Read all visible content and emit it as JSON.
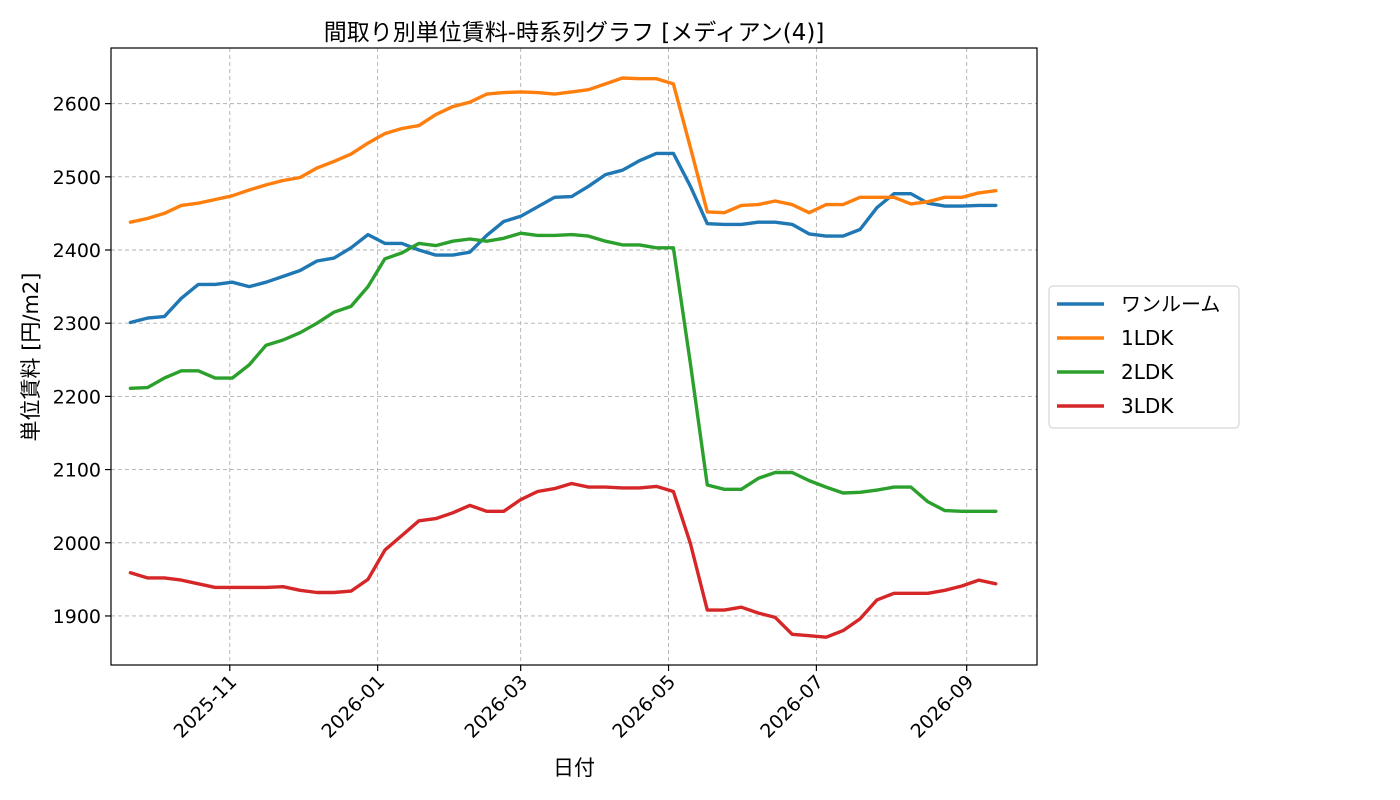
{
  "chart_data": {
    "type": "line",
    "title": "間取り別単位賃料-時系列グラフ [メディアン(4)]",
    "xlabel": "日付",
    "ylabel": "単位賃料 [円/m2]",
    "grid": true,
    "legend_position": "center-right",
    "ylim": [
      1833,
      2676
    ],
    "xlim": [
      "2025-09-13",
      "2026-09-30"
    ],
    "y_ticks": [
      1900,
      2000,
      2100,
      2200,
      2300,
      2400,
      2500,
      2600
    ],
    "x_ticks": [
      {
        "date": "2025-11-01",
        "label": "2025-11"
      },
      {
        "date": "2026-01-01",
        "label": "2026-01"
      },
      {
        "date": "2026-03-01",
        "label": "2026-03"
      },
      {
        "date": "2026-05-01",
        "label": "2026-05"
      },
      {
        "date": "2026-07-01",
        "label": "2026-07"
      },
      {
        "date": "2026-09-01",
        "label": "2026-09"
      }
    ],
    "x": [
      "2025-09-21",
      "2025-09-28",
      "2025-10-05",
      "2025-10-12",
      "2025-10-19",
      "2025-10-26",
      "2025-11-02",
      "2025-11-09",
      "2025-11-16",
      "2025-11-23",
      "2025-11-30",
      "2025-12-07",
      "2025-12-14",
      "2025-12-21",
      "2025-12-28",
      "2026-01-04",
      "2026-01-11",
      "2026-01-18",
      "2026-01-25",
      "2026-02-01",
      "2026-02-08",
      "2026-02-15",
      "2026-02-22",
      "2026-03-01",
      "2026-03-08",
      "2026-03-15",
      "2026-03-22",
      "2026-03-29",
      "2026-04-05",
      "2026-04-12",
      "2026-04-19",
      "2026-04-26",
      "2026-05-03",
      "2026-05-10",
      "2026-05-17",
      "2026-05-24",
      "2026-05-31",
      "2026-06-07",
      "2026-06-14",
      "2026-06-21",
      "2026-06-28",
      "2026-07-05",
      "2026-07-12",
      "2026-07-19",
      "2026-07-26",
      "2026-08-02",
      "2026-08-09",
      "2026-08-16",
      "2026-08-23",
      "2026-08-30",
      "2026-09-06",
      "2026-09-13"
    ],
    "series": [
      {
        "name": "ワンルーム",
        "color": "#1f77b4",
        "values": [
          2301,
          2307,
          2309,
          2334,
          2353,
          2353,
          2356,
          2350,
          2356,
          2364,
          2372,
          2385,
          2389,
          2403,
          2421,
          2409,
          2409,
          2400,
          2393,
          2393,
          2397,
          2420,
          2439,
          2446,
          2459,
          2472,
          2473,
          2487,
          2503,
          2509,
          2522,
          2532,
          2532,
          2487,
          2436,
          2435,
          2435,
          2438,
          2438,
          2435,
          2422,
          2419,
          2419,
          2428,
          2458,
          2477,
          2477,
          2464,
          2460,
          2460,
          2461,
          2461
        ]
      },
      {
        "name": "1LDK",
        "color": "#ff7f0e",
        "values": [
          2438,
          2443,
          2450,
          2461,
          2464,
          2469,
          2474,
          2482,
          2489,
          2495,
          2499,
          2512,
          2521,
          2531,
          2546,
          2559,
          2566,
          2570,
          2585,
          2596,
          2602,
          2613,
          2615,
          2616,
          2615,
          2613,
          2616,
          2619,
          2627,
          2635,
          2634,
          2634,
          2627,
          2540,
          2452,
          2451,
          2461,
          2462,
          2467,
          2462,
          2451,
          2462,
          2462,
          2472,
          2472,
          2472,
          2463,
          2466,
          2472,
          2472,
          2478,
          2481
        ]
      },
      {
        "name": "2LDK",
        "color": "#2ca02c",
        "values": [
          2211,
          2212,
          2225,
          2235,
          2235,
          2225,
          2225,
          2243,
          2270,
          2277,
          2287,
          2300,
          2315,
          2323,
          2350,
          2388,
          2396,
          2409,
          2406,
          2412,
          2415,
          2412,
          2416,
          2423,
          2420,
          2420,
          2421,
          2419,
          2412,
          2407,
          2407,
          2403,
          2403,
          2245,
          2079,
          2073,
          2073,
          2088,
          2096,
          2096,
          2085,
          2076,
          2068,
          2069,
          2072,
          2076,
          2076,
          2056,
          2044,
          2043,
          2043,
          2043
        ]
      },
      {
        "name": "3LDK",
        "color": "#d62728",
        "values": [
          1959,
          1952,
          1952,
          1949,
          1944,
          1939,
          1939,
          1939,
          1939,
          1940,
          1935,
          1932,
          1932,
          1934,
          1950,
          1990,
          2010,
          2030,
          2033,
          2041,
          2051,
          2043,
          2043,
          2059,
          2070,
          2074,
          2081,
          2076,
          2076,
          2075,
          2075,
          2077,
          2070,
          1999,
          1908,
          1908,
          1912,
          1904,
          1898,
          1875,
          1873,
          1871,
          1880,
          1896,
          1922,
          1931,
          1931,
          1931,
          1935,
          1941,
          1949,
          1944
        ]
      }
    ]
  }
}
